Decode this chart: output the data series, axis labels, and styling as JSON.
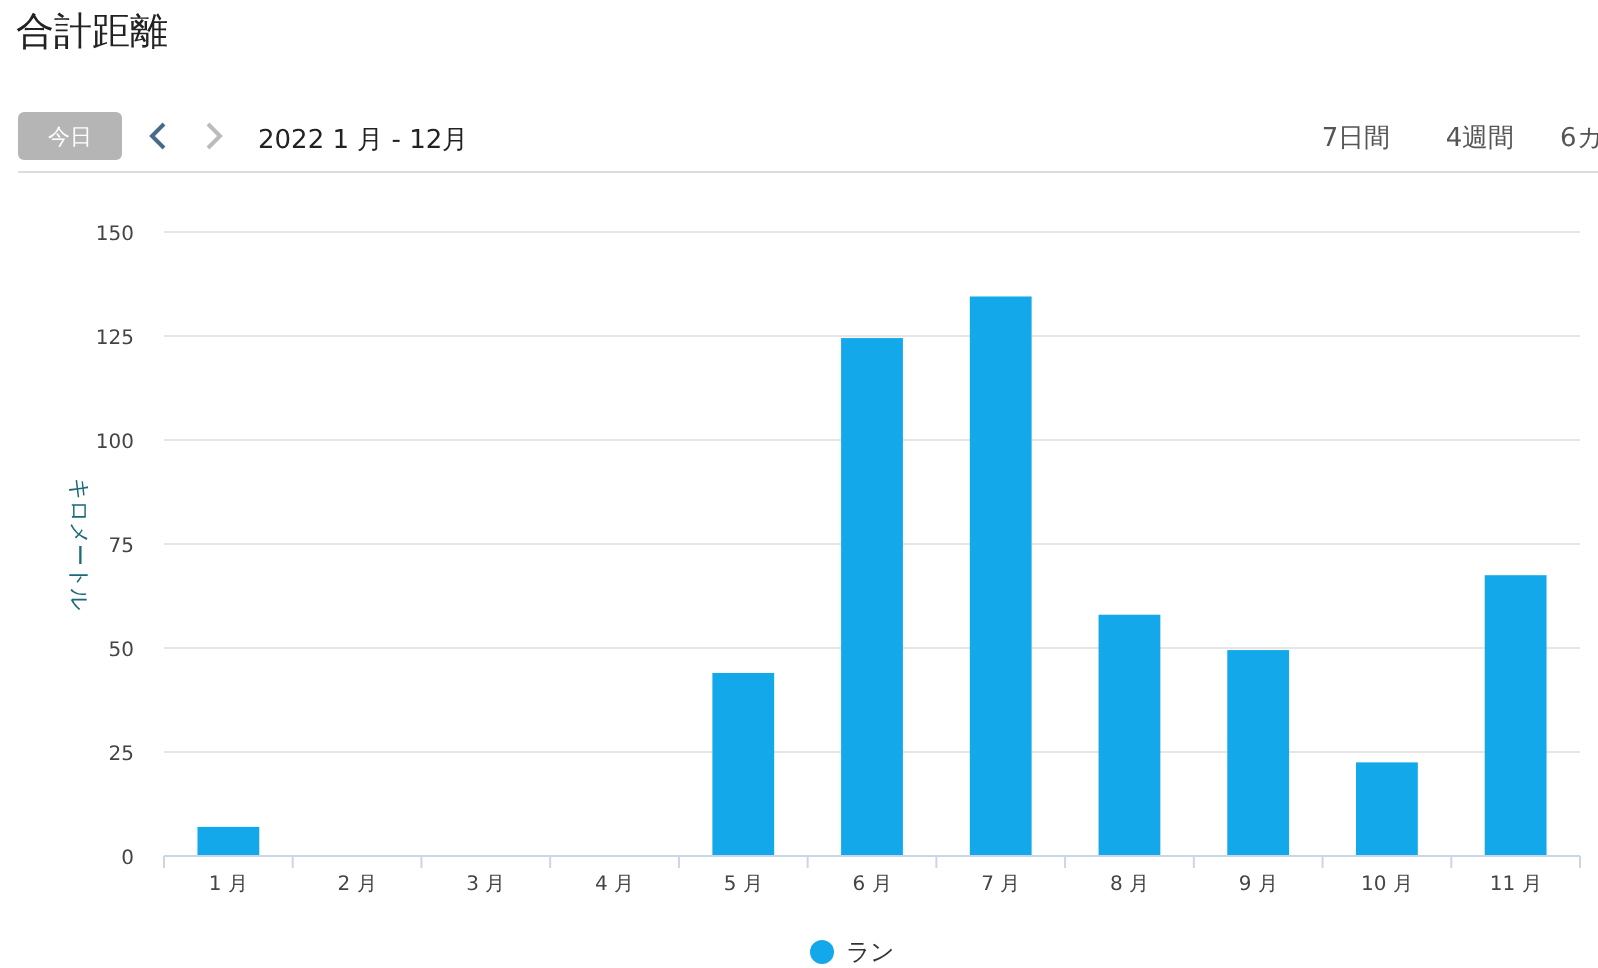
{
  "chart_data": {
    "type": "bar",
    "title": "合計距離",
    "subtitle": "2022 1 月 - 12月",
    "annotations": [
      "今日",
      "7日間",
      "4週間",
      "6カ"
    ],
    "ylabel": "キロメートル",
    "categories": [
      "1 月",
      "2 月",
      "3 月",
      "4 月",
      "5 月",
      "6 月",
      "7 月",
      "8 月",
      "9 月",
      "10 月",
      "11 月"
    ],
    "series": [
      {
        "name": "ラン",
        "color": "#12a8ea",
        "values": [
          7,
          0,
          0,
          0,
          44,
          124.5,
          134.5,
          58,
          49.5,
          22.5,
          67.5
        ]
      }
    ],
    "ylim": [
      0,
      150
    ],
    "yticks": [
      0,
      25,
      50,
      75,
      100,
      125,
      150
    ],
    "grid": "y",
    "legend": "bottom"
  }
}
